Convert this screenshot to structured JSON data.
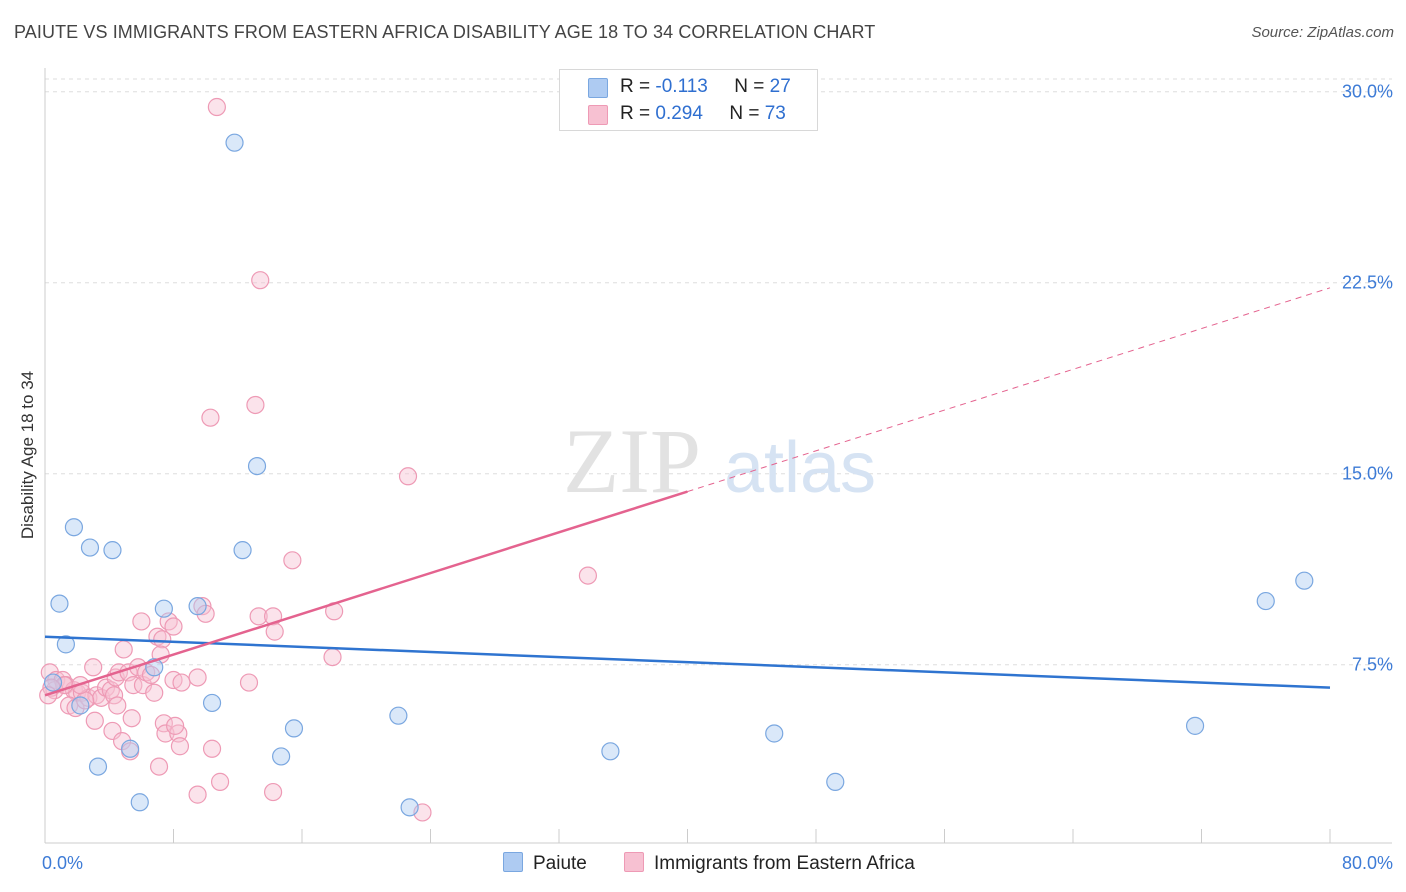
{
  "title": "PAIUTE VS IMMIGRANTS FROM EASTERN AFRICA DISABILITY AGE 18 TO 34 CORRELATION CHART",
  "source": "Source: ZipAtlas.com",
  "watermark": {
    "zip": "ZIP",
    "atlas": "atlas"
  },
  "legend": {
    "r_label": "R =",
    "n_label": "N =",
    "rows": [
      {
        "name": "Paiute",
        "r": "-0.113",
        "n": "27"
      },
      {
        "name": "Immigrants from Eastern Africa",
        "r": "0.294",
        "n": "73"
      }
    ]
  },
  "colors": {
    "paiute_fill": "#aecbf2",
    "paiute_stroke": "#7aa7e0",
    "paiute_line": "#2f74d0",
    "eafrica_fill": "#f7c1d2",
    "eafrica_stroke": "#ee9ab5",
    "eafrica_line": "#e4638f",
    "axis_text": "#3d7bd6"
  },
  "chart_data": {
    "type": "scatter",
    "title": "PAIUTE VS IMMIGRANTS FROM EASTERN AFRICA DISABILITY AGE 18 TO 34 CORRELATION CHART",
    "xlabel": "",
    "ylabel": "Disability Age 18 to 34",
    "xlim": [
      0,
      80
    ],
    "ylim": [
      0.5,
      30.5
    ],
    "x_tick_labels": [
      "0.0%",
      "80.0%"
    ],
    "y_ticks": [
      7.5,
      15.0,
      22.5,
      30.0
    ],
    "y_tick_labels": [
      "7.5%",
      "15.0%",
      "22.5%",
      "30.0%"
    ],
    "grid": true,
    "series": [
      {
        "name": "Paiute",
        "r": -0.113,
        "n": 27,
        "points": [
          [
            11.8,
            28.0
          ],
          [
            13.2,
            15.3
          ],
          [
            1.8,
            12.9
          ],
          [
            2.8,
            12.1
          ],
          [
            4.2,
            12.0
          ],
          [
            12.3,
            12.0
          ],
          [
            0.9,
            9.9
          ],
          [
            1.3,
            8.3
          ],
          [
            7.4,
            9.7
          ],
          [
            9.5,
            9.8
          ],
          [
            6.8,
            7.4
          ],
          [
            0.5,
            6.8
          ],
          [
            2.2,
            5.9
          ],
          [
            10.4,
            6.0
          ],
          [
            15.5,
            5.0
          ],
          [
            22.0,
            5.5
          ],
          [
            3.3,
            3.5
          ],
          [
            5.3,
            4.2
          ],
          [
            14.7,
            3.9
          ],
          [
            35.2,
            4.1
          ],
          [
            45.4,
            4.8
          ],
          [
            49.2,
            2.9
          ],
          [
            5.9,
            2.1
          ],
          [
            22.7,
            1.9
          ],
          [
            71.6,
            5.1
          ],
          [
            76.0,
            10.0
          ],
          [
            78.4,
            10.8
          ]
        ],
        "trend": {
          "x": [
            0,
            80
          ],
          "y": [
            8.6,
            6.6
          ],
          "dashed_x": null
        }
      },
      {
        "name": "Immigrants from Eastern Africa",
        "r": 0.294,
        "n": 73,
        "points": [
          [
            10.7,
            29.4
          ],
          [
            13.4,
            22.6
          ],
          [
            13.1,
            17.7
          ],
          [
            10.3,
            17.2
          ],
          [
            22.6,
            14.9
          ],
          [
            15.4,
            11.6
          ],
          [
            33.8,
            11.0
          ],
          [
            9.8,
            9.8
          ],
          [
            10.0,
            9.5
          ],
          [
            13.3,
            9.4
          ],
          [
            14.2,
            9.4
          ],
          [
            18.0,
            9.6
          ],
          [
            6.0,
            9.2
          ],
          [
            7.7,
            9.2
          ],
          [
            8.0,
            9.0
          ],
          [
            14.3,
            8.8
          ],
          [
            7.0,
            8.6
          ],
          [
            4.9,
            8.1
          ],
          [
            7.3,
            8.5
          ],
          [
            7.2,
            7.9
          ],
          [
            17.9,
            7.8
          ],
          [
            0.3,
            7.2
          ],
          [
            0.7,
            6.9
          ],
          [
            1.1,
            6.9
          ],
          [
            1.3,
            6.7
          ],
          [
            1.8,
            6.5
          ],
          [
            2.0,
            6.4
          ],
          [
            2.3,
            6.4
          ],
          [
            2.7,
            6.2
          ],
          [
            3.0,
            7.4
          ],
          [
            3.2,
            6.3
          ],
          [
            3.5,
            6.2
          ],
          [
            3.8,
            6.6
          ],
          [
            4.1,
            6.5
          ],
          [
            4.4,
            7.0
          ],
          [
            4.6,
            7.2
          ],
          [
            5.2,
            7.2
          ],
          [
            5.5,
            6.7
          ],
          [
            5.8,
            7.4
          ],
          [
            6.1,
            6.7
          ],
          [
            6.3,
            7.2
          ],
          [
            6.6,
            7.1
          ],
          [
            6.8,
            6.4
          ],
          [
            8.0,
            6.9
          ],
          [
            8.5,
            6.8
          ],
          [
            9.5,
            7.0
          ],
          [
            12.7,
            6.8
          ],
          [
            0.6,
            6.5
          ],
          [
            1.5,
            5.9
          ],
          [
            1.9,
            5.8
          ],
          [
            2.5,
            6.1
          ],
          [
            3.1,
            5.3
          ],
          [
            4.3,
            6.3
          ],
          [
            4.5,
            5.9
          ],
          [
            5.4,
            5.4
          ],
          [
            7.4,
            5.2
          ],
          [
            7.5,
            4.8
          ],
          [
            8.3,
            4.8
          ],
          [
            8.1,
            5.1
          ],
          [
            4.2,
            4.9
          ],
          [
            4.8,
            4.5
          ],
          [
            5.3,
            4.1
          ],
          [
            8.4,
            4.3
          ],
          [
            10.4,
            4.2
          ],
          [
            7.1,
            3.5
          ],
          [
            9.5,
            2.4
          ],
          [
            10.9,
            2.9
          ],
          [
            14.2,
            2.5
          ],
          [
            23.5,
            1.7
          ],
          [
            1.2,
            6.7
          ],
          [
            0.4,
            6.6
          ],
          [
            0.2,
            6.3
          ],
          [
            2.2,
            6.7
          ]
        ],
        "trend": {
          "x": [
            0,
            40
          ],
          "y": [
            6.3,
            14.3
          ],
          "dashed_x": [
            40,
            80
          ],
          "dashed_y": [
            14.3,
            22.3
          ]
        }
      }
    ]
  }
}
